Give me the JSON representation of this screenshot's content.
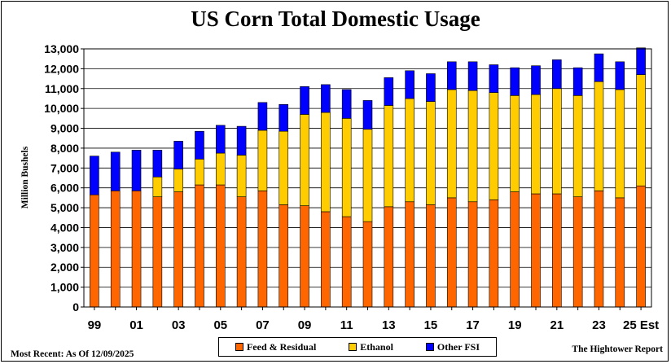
{
  "chart_data": {
    "type": "bar",
    "stacked": true,
    "title": "US Corn Total Domestic Usage",
    "ylabel": "Million Bushels",
    "xlabel": "",
    "ylim": [
      0,
      13000
    ],
    "yticks": [
      0,
      1000,
      2000,
      3000,
      4000,
      5000,
      6000,
      7000,
      8000,
      9000,
      10000,
      11000,
      12000,
      13000
    ],
    "ytick_labels": [
      "0",
      "1,000",
      "2,000",
      "3,000",
      "4,000",
      "5,000",
      "6,000",
      "7,000",
      "8,000",
      "9,000",
      "10,000",
      "11,000",
      "12,000",
      "13,000"
    ],
    "categories": [
      "1999",
      "2000",
      "2001",
      "2002",
      "2003",
      "2004",
      "2005",
      "2006",
      "2007",
      "2008",
      "2009",
      "2010",
      "2011",
      "2012",
      "2013",
      "2014",
      "2015",
      "2016",
      "2017",
      "2018",
      "2019",
      "2020",
      "2021",
      "2022",
      "2023",
      "2024",
      "2025 Est"
    ],
    "xtick_labels": [
      "99",
      "01",
      "03",
      "05",
      "07",
      "09",
      "11",
      "13",
      "15",
      "17",
      "19",
      "21",
      "23",
      "25 Est"
    ],
    "xtick_indices": [
      0,
      2,
      4,
      6,
      8,
      10,
      12,
      14,
      16,
      18,
      20,
      22,
      24,
      26
    ],
    "series": [
      {
        "name": "Feed & Residual",
        "color": "#ff6600",
        "values": [
          5650,
          5850,
          5850,
          5550,
          5800,
          6150,
          6150,
          5550,
          5850,
          5150,
          5100,
          4800,
          4550,
          4300,
          5050,
          5300,
          5150,
          5500,
          5300,
          5400,
          5800,
          5700,
          5700,
          5550,
          5850,
          5500,
          6100
        ]
      },
      {
        "name": "Ethanol",
        "color": "#ffcc00",
        "values": [
          0,
          0,
          0,
          1000,
          1150,
          1300,
          1600,
          2100,
          3050,
          3700,
          4600,
          5000,
          4950,
          4650,
          5100,
          5200,
          5200,
          5450,
          5600,
          5400,
          4850,
          5000,
          5300,
          5100,
          5500,
          5450,
          5600
        ]
      },
      {
        "name": "Other FSI",
        "color": "#0000ff",
        "values": [
          1950,
          1950,
          2050,
          1350,
          1400,
          1400,
          1400,
          1450,
          1400,
          1350,
          1400,
          1400,
          1450,
          1450,
          1400,
          1400,
          1400,
          1400,
          1450,
          1400,
          1400,
          1450,
          1450,
          1400,
          1400,
          1400,
          1350
        ]
      }
    ],
    "legend_position": "bottom-center",
    "grid": true
  },
  "footer": {
    "most_recent": "Most Recent: As Of 12/09/2025",
    "source": "The Hightower Report"
  }
}
